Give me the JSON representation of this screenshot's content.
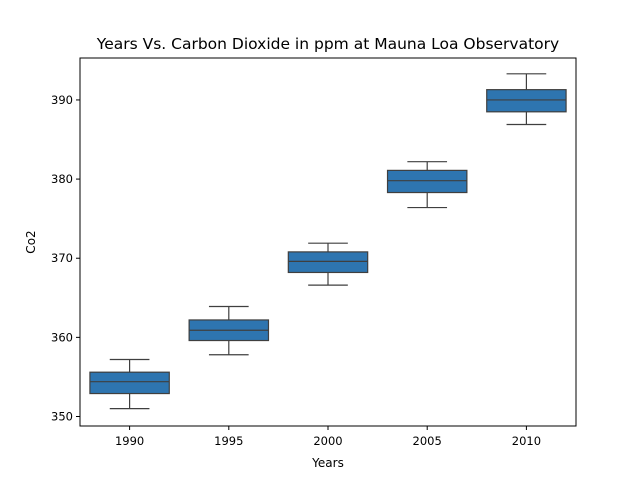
{
  "chart_data": {
    "type": "box",
    "title": "Years Vs. Carbon Dioxide in ppm at Mauna Loa Observatory",
    "xlabel": "Years",
    "ylabel": "Co2",
    "ylim": [
      348.8,
      395.3
    ],
    "yticks": [
      350,
      360,
      370,
      380,
      390
    ],
    "grid": false,
    "box_color": "#2e75b0",
    "line_color": "#3f3f3f",
    "categories": [
      "1990",
      "1995",
      "2000",
      "2005",
      "2010"
    ],
    "boxes": [
      {
        "category": "1990",
        "min": 351.0,
        "q1": 352.9,
        "median": 354.4,
        "q3": 355.6,
        "max": 357.2
      },
      {
        "category": "1995",
        "min": 357.8,
        "q1": 359.6,
        "median": 360.9,
        "q3": 362.2,
        "max": 363.9
      },
      {
        "category": "2000",
        "min": 366.6,
        "q1": 368.2,
        "median": 369.6,
        "q3": 370.8,
        "max": 371.9
      },
      {
        "category": "2005",
        "min": 376.4,
        "q1": 378.3,
        "median": 379.8,
        "q3": 381.1,
        "max": 382.2
      },
      {
        "category": "2010",
        "min": 386.9,
        "q1": 388.5,
        "median": 390.0,
        "q3": 391.3,
        "max": 393.3
      }
    ]
  }
}
